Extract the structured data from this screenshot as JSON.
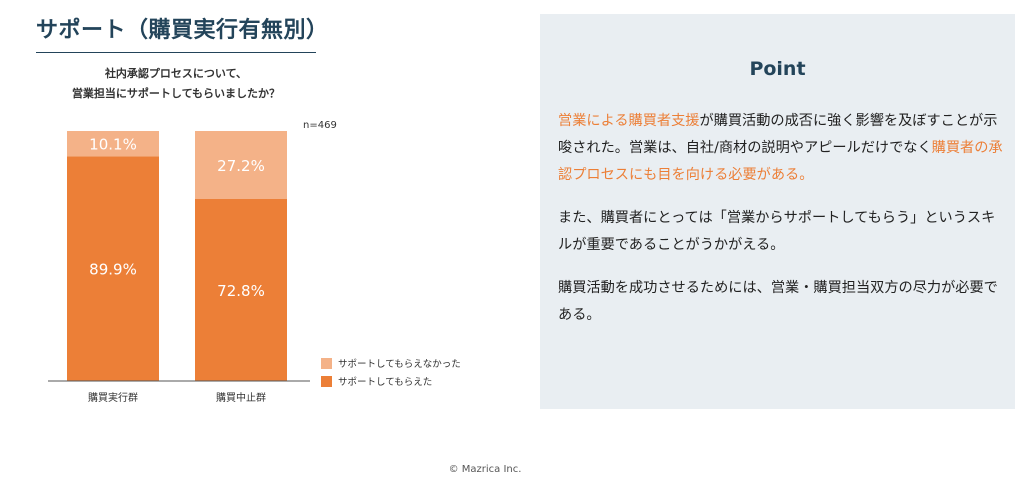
{
  "header": {
    "title": "サポート（購買実行有無別）",
    "subtitle_line1": "社内承認プロセスについて、",
    "subtitle_line2": "営業担当にサポートしてもらいましたか？"
  },
  "chart_data": {
    "type": "bar",
    "stacked": true,
    "categories": [
      "購買実行群",
      "購買中止群"
    ],
    "series": [
      {
        "name": "サポートしてもらえた",
        "values": [
          89.9,
          72.8
        ],
        "labels": [
          "89.9%",
          "72.8%"
        ],
        "color": "#ec7f37"
      },
      {
        "name": "サポートしてもらえなかった",
        "values": [
          10.1,
          27.2
        ],
        "labels": [
          "10.1%",
          "27.2%"
        ],
        "color": "#f4b288"
      }
    ],
    "ylim": [
      0,
      100
    ],
    "sample_note": "n=469",
    "legend_position": "bottom-right"
  },
  "point": {
    "title": "Point",
    "p1": [
      {
        "text": "営業による購買者支援",
        "hl": true
      },
      {
        "text": "が購買活動の成否に強く影響を及ぼすことが示唆された。営業は、自社/商材の説明やアピールだけでなく",
        "hl": false
      },
      {
        "text": "購買者の承認プロセスにも目を向ける必要がある。",
        "hl": true
      }
    ],
    "p2": "また、購買者にとっては「営業からサポートしてもらう」というスキルが重要であることがうかがえる。",
    "p3": "購買活動を成功させるためには、営業・購買担当双方の尽力が必要である。",
    "highlight_color": "#ec7f37"
  },
  "footer": {
    "copyright": "© Mazrica Inc."
  }
}
